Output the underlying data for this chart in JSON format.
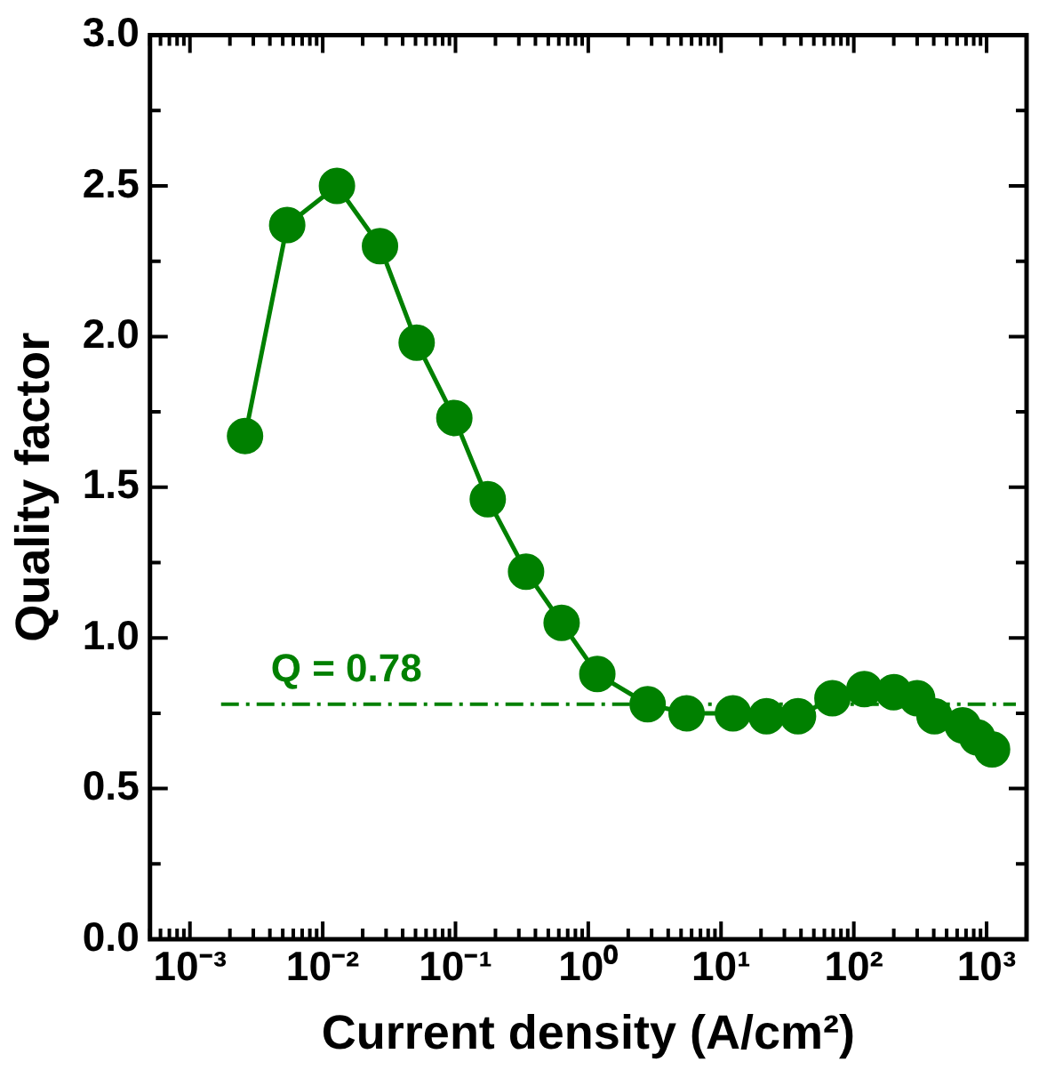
{
  "chart_data": {
    "type": "line",
    "xlabel": "Current density (A/cm²)",
    "ylabel": "Quality factor",
    "log": "x",
    "x": [
      0.0026,
      0.0054,
      0.0128,
      0.027,
      0.051,
      0.098,
      0.175,
      0.34,
      0.63,
      1.17,
      2.8,
      5.5,
      12.3,
      22,
      38,
      69,
      120,
      200,
      300,
      405,
      660,
      850,
      1100
    ],
    "series": [
      {
        "color": "#008000",
        "marker": "circle",
        "line_style": "solid",
        "values": [
          1.67,
          2.37,
          2.5,
          2.3,
          1.98,
          1.73,
          1.46,
          1.22,
          1.05,
          0.88,
          0.78,
          0.75,
          0.75,
          0.74,
          0.74,
          0.8,
          0.83,
          0.82,
          0.8,
          0.74,
          0.71,
          0.67,
          0.63
        ]
      }
    ],
    "xlim": [
      0.0005,
      2000
    ],
    "xticks": [
      {
        "value": 0.001,
        "label": "10⁻³"
      },
      {
        "value": 0.01,
        "label": "10⁻²"
      },
      {
        "value": 0.1,
        "label": "10⁻¹"
      },
      {
        "value": 1,
        "label": "10⁰"
      },
      {
        "value": 10,
        "label": "10¹"
      },
      {
        "value": 100,
        "label": "10²"
      },
      {
        "value": 1000,
        "label": "10³"
      }
    ],
    "ylim": [
      0,
      3
    ],
    "yticks": [
      {
        "value": 0,
        "label": "0.0"
      },
      {
        "value": 0.5,
        "label": "0.5"
      },
      {
        "value": 1,
        "label": "1.0"
      },
      {
        "value": 1.5,
        "label": "1.5"
      },
      {
        "value": 2,
        "label": "2.0"
      },
      {
        "value": 2.5,
        "label": "2.5"
      },
      {
        "value": 3,
        "label": "3.0"
      }
    ],
    "ref_lines": [
      {
        "axis": "y",
        "value": 0.78,
        "label": "Q = 0.78",
        "color": "#008000",
        "line_style": "dashdot"
      }
    ],
    "grid": false,
    "legend": false
  }
}
